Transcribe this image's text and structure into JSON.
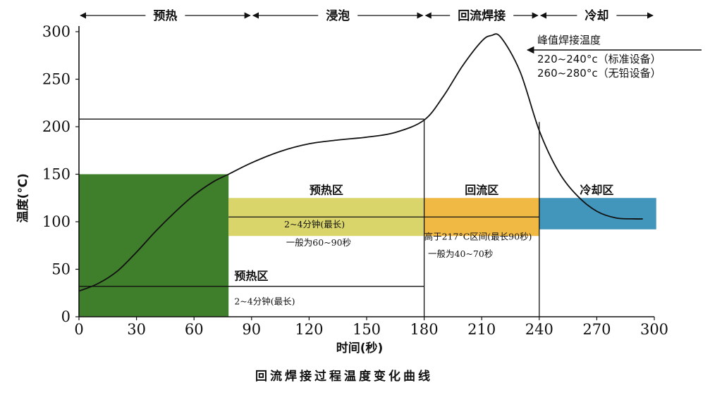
{
  "chart_data": {
    "type": "line",
    "title": "回流焊接过程温度变化曲线",
    "xlabel": "时间(秒)",
    "ylabel": "温度(℃)",
    "xlim": [
      0,
      300
    ],
    "ylim": [
      0,
      300
    ],
    "x_ticks": [
      "0",
      "30",
      "60",
      "90",
      "120",
      "150",
      "180",
      "210",
      "240",
      "270",
      "300"
    ],
    "y_ticks": [
      "0",
      "50",
      "100",
      "150",
      "200",
      "250",
      "300"
    ],
    "grid": false,
    "phases": [
      {
        "label": "预热",
        "x_start": 0,
        "x_end": 90
      },
      {
        "label": "浸泡",
        "x_start": 90,
        "x_end": 180
      },
      {
        "label": "回流焊接",
        "x_start": 180,
        "x_end": 240
      },
      {
        "label": "冷却",
        "x_start": 240,
        "x_end": 300
      }
    ],
    "zones": [
      {
        "label": "预热区",
        "x_start": 0,
        "x_end": 78,
        "y_start": 0,
        "y_end": 150,
        "color": "#3f7f2c"
      },
      {
        "label": "预热区",
        "x_start": 78,
        "x_end": 180,
        "y_start": 85,
        "y_end": 125,
        "color": "#d9d56a"
      },
      {
        "label": "回流区",
        "x_start": 180,
        "x_end": 240,
        "y_start": 85,
        "y_end": 125,
        "color": "#efb944"
      },
      {
        "label": "冷却区",
        "x_start": 240,
        "x_end": 301,
        "y_start": 92,
        "y_end": 125,
        "color": "#4296bb"
      }
    ],
    "zone_notes": [
      {
        "text": "预热区",
        "x": 81,
        "y": 39
      },
      {
        "text": "2~4分钟(最长)",
        "x": 81,
        "y": 13
      },
      {
        "text": "2~4分钟(最长)",
        "x": 107,
        "y": 94
      },
      {
        "text": "一般为60~90秒",
        "x": 108,
        "y": 75
      },
      {
        "text": "高于217°C区间(最长90秒)",
        "x": 180,
        "y": 81
      },
      {
        "text": "一般为40~70秒",
        "x": 182,
        "y": 63
      }
    ],
    "peak_annotation": {
      "title": "峰值焊接温度",
      "lines": [
        "220~240°c（标准设备）",
        "260~280°c（无铅设备）"
      ]
    },
    "series": [
      {
        "values": [
          [
            0,
            27
          ],
          [
            10,
            35
          ],
          [
            20,
            48
          ],
          [
            30,
            68
          ],
          [
            40,
            90
          ],
          [
            50,
            110
          ],
          [
            60,
            128
          ],
          [
            70,
            142
          ],
          [
            78,
            150
          ],
          [
            90,
            162
          ],
          [
            105,
            174
          ],
          [
            120,
            182
          ],
          [
            135,
            186
          ],
          [
            150,
            189
          ],
          [
            165,
            194
          ],
          [
            180,
            207
          ],
          [
            190,
            232
          ],
          [
            200,
            264
          ],
          [
            210,
            290
          ],
          [
            215,
            296
          ],
          [
            220,
            294
          ],
          [
            230,
            258
          ],
          [
            240,
            196
          ],
          [
            250,
            153
          ],
          [
            260,
            127
          ],
          [
            270,
            111
          ],
          [
            280,
            104
          ],
          [
            290,
            103
          ],
          [
            294,
            103
          ]
        ]
      }
    ],
    "reference_lines": [
      {
        "type": "h",
        "y": 208,
        "x_start": 0,
        "x_end": 180
      },
      {
        "type": "h",
        "y": 105,
        "x_start": 78,
        "x_end": 240
      },
      {
        "type": "h",
        "y": 32,
        "x_start": 0,
        "x_end": 180
      },
      {
        "type": "v",
        "x": 180,
        "y_start": 0,
        "y_end": 207
      },
      {
        "type": "v",
        "x": 240,
        "y_start": 0,
        "y_end": 205
      }
    ]
  }
}
